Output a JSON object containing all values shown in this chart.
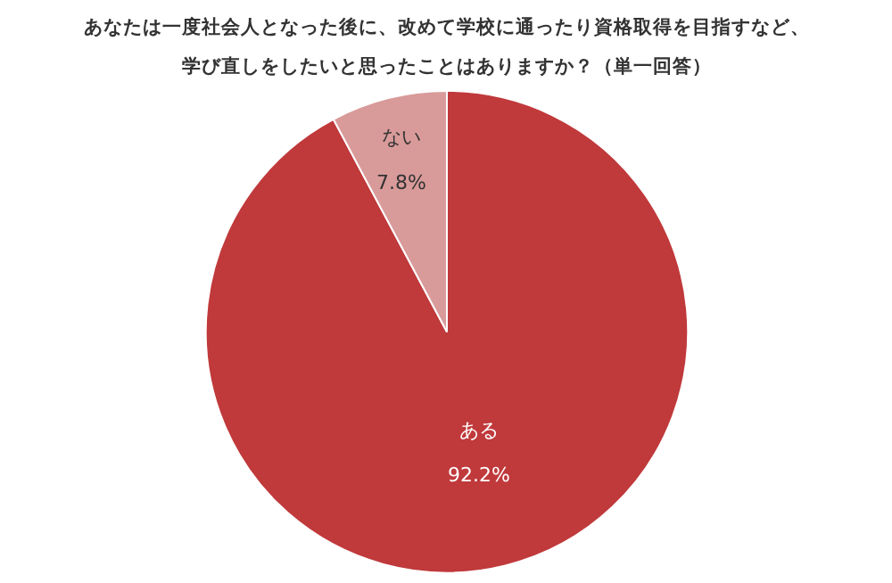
{
  "chart_data": {
    "type": "pie",
    "title": "あなたは一度社会人となった後に、改めて学校に通ったり資格取得を目指すなど、学び直しをしたいと思ったことはありますか？（単一回答）",
    "categories": [
      "ある",
      "ない"
    ],
    "values": [
      92.2,
      7.8
    ],
    "value_labels": [
      "92.2%",
      "7.8%"
    ],
    "colors": [
      "#c0393b",
      "#d99a9a"
    ]
  }
}
